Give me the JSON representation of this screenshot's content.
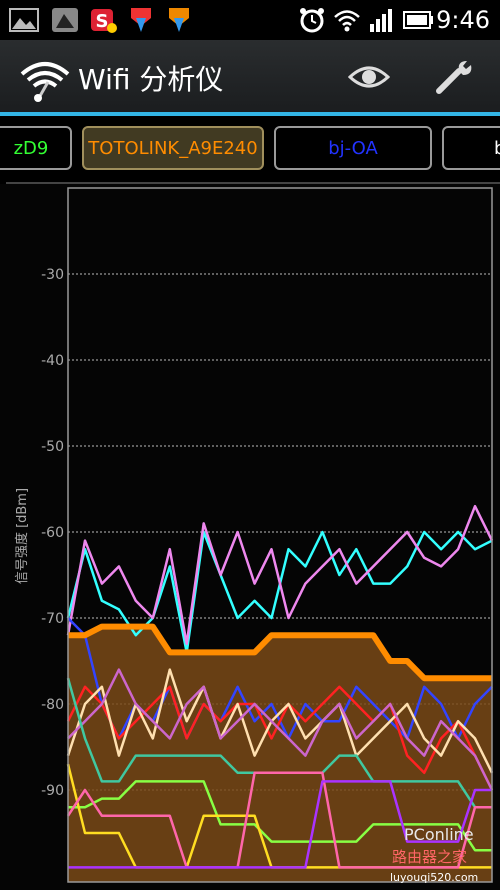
{
  "status_bar": {
    "time": "9:46",
    "left_icons": [
      "gallery-icon",
      "photo-icon",
      "s-app-icon",
      "download-icon",
      "download-icon"
    ],
    "right_icons": [
      "alarm-icon",
      "wifi-signal-icon",
      "cell-signal-icon",
      "battery-icon"
    ]
  },
  "app_bar": {
    "title": "Wifi 分析仪",
    "icons": [
      "wifi-analyzer-logo",
      "eye-icon",
      "wrench-icon"
    ]
  },
  "tabs": [
    {
      "label": "zD9",
      "color": "#33ff33"
    },
    {
      "label": "TOTOLINK_A9E240",
      "color": "#ff8c00"
    },
    {
      "label": "bj-OA",
      "color": "#2233ff"
    },
    {
      "label": "b",
      "color": "#ffffff"
    }
  ],
  "chart_data": {
    "type": "line",
    "ylabel": "信号强度 [dBm]",
    "y_ticks": [
      "-30",
      "-40",
      "-50",
      "-60",
      "-70",
      "-80",
      "-90"
    ],
    "ylim": [
      -100,
      -20
    ],
    "grid": true,
    "highlighted_series": "TOTOLINK_A9E240",
    "series": [
      {
        "color": "#33ffff",
        "values": [
          -70,
          -62,
          -68,
          -69,
          -72,
          -70,
          -64,
          -74,
          -60,
          -65,
          -70,
          -68,
          -70,
          -62,
          -64,
          -60,
          -65,
          -62,
          -66,
          -66,
          -64,
          -60,
          -62,
          -60,
          -62,
          -61
        ]
      },
      {
        "color": "#ee88ee",
        "values": [
          -72,
          -61,
          -66,
          -64,
          -68,
          -70,
          -62,
          -73,
          -59,
          -65,
          -60,
          -66,
          -62,
          -70,
          -66,
          -64,
          -62,
          -66,
          -64,
          -62,
          -60,
          -63,
          -64,
          -62,
          -57,
          -61
        ]
      },
      {
        "color": "#ff8c00",
        "values": [
          -72,
          -72,
          -71,
          -71,
          -71,
          -71,
          -74,
          -74,
          -74,
          -74,
          -74,
          -74,
          -72,
          -72,
          -72,
          -72,
          -72,
          -72,
          -72,
          -75,
          -75,
          -77,
          -77,
          -77,
          -77,
          -77
        ]
      },
      {
        "color": "#3344ff",
        "values": [
          -70,
          -72,
          -80,
          -84,
          -80,
          -82,
          -78,
          -84,
          -80,
          -82,
          -78,
          -82,
          -80,
          -84,
          -80,
          -82,
          -82,
          -78,
          -80,
          -82,
          -84,
          -78,
          -80,
          -84,
          -80,
          -78
        ]
      },
      {
        "color": "#ff2222",
        "values": [
          -82,
          -78,
          -80,
          -84,
          -82,
          -80,
          -78,
          -84,
          -80,
          -82,
          -80,
          -80,
          -84,
          -80,
          -82,
          -80,
          -78,
          -80,
          -82,
          -80,
          -86,
          -88,
          -84,
          -82,
          -86,
          -90
        ]
      },
      {
        "color": "#ffe0b0",
        "values": [
          -86,
          -80,
          -78,
          -86,
          -80,
          -84,
          -76,
          -82,
          -78,
          -84,
          -80,
          -86,
          -82,
          -80,
          -84,
          -82,
          -80,
          -86,
          -84,
          -82,
          -80,
          -84,
          -86,
          -82,
          -84,
          -88
        ]
      },
      {
        "color": "#cc66cc",
        "values": [
          -84,
          -82,
          -80,
          -76,
          -80,
          -82,
          -84,
          -80,
          -78,
          -84,
          -82,
          -80,
          -82,
          -84,
          -86,
          -82,
          -80,
          -84,
          -82,
          -80,
          -84,
          -86,
          -82,
          -84,
          -86,
          -90
        ]
      },
      {
        "color": "#40c8a0",
        "values": [
          -77,
          -84,
          -89,
          -89,
          -86,
          -86,
          -86,
          -86,
          -86,
          -86,
          -88,
          -88,
          -88,
          -88,
          -88,
          -88,
          -86,
          -86,
          -89,
          -89,
          -89,
          -89,
          -89,
          -89,
          -92,
          -92
        ]
      },
      {
        "color": "#88ff44",
        "values": [
          -92,
          -92,
          -91,
          -91,
          -89,
          -89,
          -89,
          -89,
          -89,
          -94,
          -94,
          -94,
          -96,
          -96,
          -96,
          -96,
          -96,
          -96,
          -94,
          -94,
          -94,
          -94,
          -94,
          -94,
          -97,
          -97
        ]
      },
      {
        "color": "#ffdd22",
        "values": [
          -87,
          -95,
          -95,
          -95,
          -99,
          -99,
          -99,
          -99,
          -93,
          -93,
          -93,
          -93,
          -99,
          -99,
          -99,
          -99,
          -99,
          -99,
          -99,
          -99,
          -99,
          -99,
          -99,
          -99,
          -99,
          -99
        ]
      },
      {
        "color": "#ff66aa",
        "values": [
          -93,
          -90,
          -93,
          -93,
          -93,
          -93,
          -93,
          -99,
          -99,
          -99,
          -99,
          -88,
          -88,
          -88,
          -88,
          -88,
          -99,
          -99,
          -99,
          -99,
          -99,
          -99,
          -99,
          -99,
          -92,
          -92
        ]
      },
      {
        "color": "#aa33ff",
        "values": [
          -99,
          -99,
          -99,
          -99,
          -99,
          -99,
          -99,
          -99,
          -99,
          -99,
          -99,
          -99,
          -99,
          -99,
          -99,
          -89,
          -89,
          -89,
          -89,
          -89,
          -96,
          -96,
          -96,
          -96,
          -90,
          -90
        ]
      }
    ]
  },
  "watermark": {
    "line1": "PConline",
    "line2": "路由器之家",
    "line3": "luyouqi520.com"
  }
}
